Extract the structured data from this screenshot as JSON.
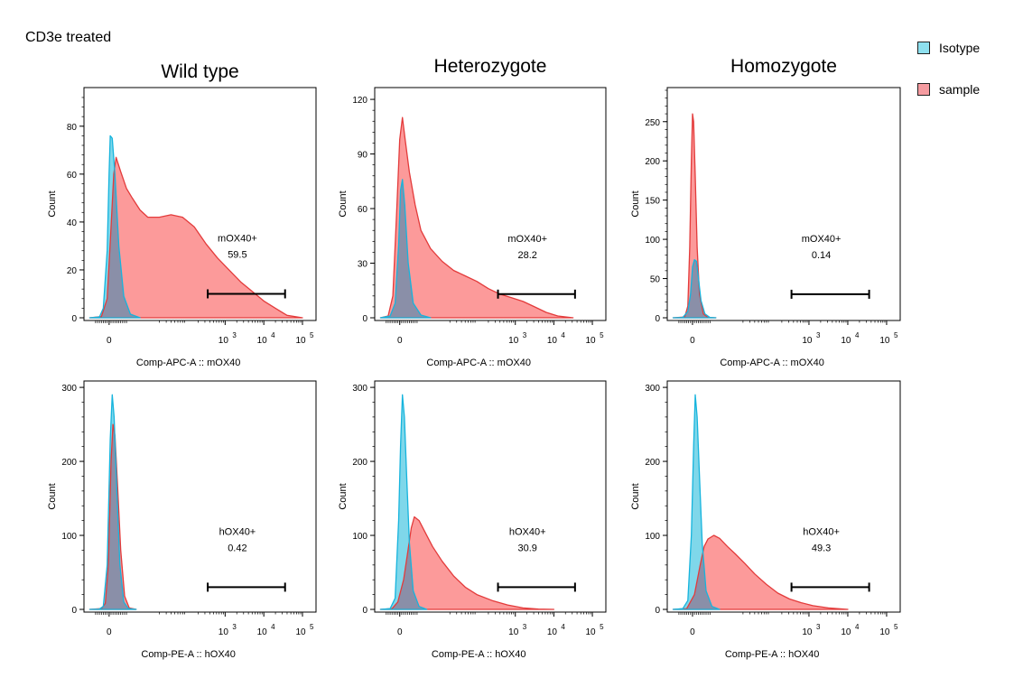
{
  "figure_title": "CD3e treated",
  "colors": {
    "isotype_fill": "#7fd7ea",
    "isotype_line": "#16b4dd",
    "sample_fill": "#fc9a9a",
    "sample_line": "#e33b3b",
    "overlap_fill": "#8a8fa8"
  },
  "legend": [
    {
      "label": "Isotype",
      "color": "#8ee0ef"
    },
    {
      "label": "sample",
      "color": "#f59ba0"
    }
  ],
  "chart_data": [
    {
      "type": "area",
      "title": "Wild type",
      "xlabel": "Comp-APC-A :: mOX40",
      "ylabel": "Count",
      "ylim": [
        0,
        95
      ],
      "yticks": [
        0,
        20,
        40,
        60,
        80
      ],
      "xticks": [
        {
          "value": 0,
          "label": "0",
          "exp": ""
        },
        {
          "value": 3,
          "label": "10",
          "exp": "3"
        },
        {
          "value": 4,
          "label": "10",
          "exp": "4"
        },
        {
          "value": 5,
          "label": "10",
          "exp": "5"
        }
      ],
      "gate": {
        "name": "mOX40+",
        "value": "59.5",
        "x_range": [
          2.55,
          4.55
        ],
        "y": 10
      },
      "series": [
        {
          "name": "Isotype",
          "points": [
            [
              -0.5,
              0
            ],
            [
              -0.25,
              0.3
            ],
            [
              -0.15,
              4
            ],
            [
              -0.05,
              28
            ],
            [
              0,
              60
            ],
            [
              0.03,
              76
            ],
            [
              0.08,
              75
            ],
            [
              0.15,
              60
            ],
            [
              0.25,
              30
            ],
            [
              0.38,
              9
            ],
            [
              0.55,
              1.5
            ],
            [
              0.8,
              0
            ]
          ]
        },
        {
          "name": "sample",
          "points": [
            [
              -0.5,
              0
            ],
            [
              -0.2,
              0.5
            ],
            [
              -0.05,
              8
            ],
            [
              0.05,
              38
            ],
            [
              0.12,
              60
            ],
            [
              0.18,
              67
            ],
            [
              0.3,
              61
            ],
            [
              0.45,
              54
            ],
            [
              0.6,
              50
            ],
            [
              0.8,
              45
            ],
            [
              1.0,
              42
            ],
            [
              1.3,
              42
            ],
            [
              1.6,
              43
            ],
            [
              1.9,
              42
            ],
            [
              2.2,
              38
            ],
            [
              2.5,
              31
            ],
            [
              2.8,
              25
            ],
            [
              3.1,
              20
            ],
            [
              3.4,
              15
            ],
            [
              3.7,
              11
            ],
            [
              4.0,
              7
            ],
            [
              4.3,
              4
            ],
            [
              4.6,
              1
            ],
            [
              5.0,
              0
            ]
          ]
        }
      ]
    },
    {
      "type": "area",
      "title": "Heterozygote",
      "xlabel": "Comp-APC-A :: mOX40",
      "ylabel": "Count",
      "ylim": [
        0,
        125
      ],
      "yticks": [
        0,
        30,
        60,
        90,
        120
      ],
      "xticks": [
        {
          "value": 0,
          "label": "0",
          "exp": ""
        },
        {
          "value": 3,
          "label": "10",
          "exp": "3"
        },
        {
          "value": 4,
          "label": "10",
          "exp": "4"
        },
        {
          "value": 5,
          "label": "10",
          "exp": "5"
        }
      ],
      "gate": {
        "name": "mOX40+",
        "value": "28.2",
        "x_range": [
          2.55,
          4.55
        ],
        "y": 13
      },
      "series": [
        {
          "name": "Isotype",
          "points": [
            [
              -0.5,
              0
            ],
            [
              -0.25,
              1
            ],
            [
              -0.12,
              8
            ],
            [
              -0.03,
              40
            ],
            [
              0.02,
              70
            ],
            [
              0.07,
              76
            ],
            [
              0.13,
              62
            ],
            [
              0.22,
              30
            ],
            [
              0.35,
              8
            ],
            [
              0.55,
              1.5
            ],
            [
              0.8,
              0
            ]
          ]
        },
        {
          "name": "sample",
          "points": [
            [
              -0.5,
              0
            ],
            [
              -0.3,
              1
            ],
            [
              -0.18,
              12
            ],
            [
              -0.08,
              58
            ],
            [
              0,
              98
            ],
            [
              0.07,
              110
            ],
            [
              0.14,
              98
            ],
            [
              0.25,
              80
            ],
            [
              0.4,
              62
            ],
            [
              0.55,
              48
            ],
            [
              0.8,
              38
            ],
            [
              1.1,
              31
            ],
            [
              1.4,
              26
            ],
            [
              1.7,
              23
            ],
            [
              2.0,
              20
            ],
            [
              2.3,
              16
            ],
            [
              2.6,
              13
            ],
            [
              2.9,
              11
            ],
            [
              3.2,
              9
            ],
            [
              3.5,
              6
            ],
            [
              3.8,
              3
            ],
            [
              4.1,
              1
            ],
            [
              4.5,
              0
            ]
          ]
        }
      ]
    },
    {
      "type": "area",
      "title": "Homozygote",
      "xlabel": "Comp-APC-A :: mOX40",
      "ylabel": "Count",
      "ylim": [
        0,
        290
      ],
      "yticks": [
        0,
        50,
        100,
        150,
        200,
        250
      ],
      "xticks": [
        {
          "value": 0,
          "label": "0",
          "exp": ""
        },
        {
          "value": 3,
          "label": "10",
          "exp": "3"
        },
        {
          "value": 4,
          "label": "10",
          "exp": "4"
        },
        {
          "value": 5,
          "label": "10",
          "exp": "5"
        }
      ],
      "gate": {
        "name": "mOX40+",
        "value": "0.14",
        "x_range": [
          2.55,
          4.55
        ],
        "y": 30
      },
      "series": [
        {
          "name": "Isotype",
          "points": [
            [
              -0.5,
              0
            ],
            [
              -0.25,
              0.5
            ],
            [
              -0.12,
              8
            ],
            [
              -0.05,
              30
            ],
            [
              0,
              65
            ],
            [
              0.05,
              74
            ],
            [
              0.1,
              72
            ],
            [
              0.15,
              52
            ],
            [
              0.22,
              22
            ],
            [
              0.32,
              5
            ],
            [
              0.45,
              0.5
            ],
            [
              0.6,
              0
            ]
          ]
        },
        {
          "name": "sample",
          "points": [
            [
              -0.5,
              0
            ],
            [
              -0.2,
              1
            ],
            [
              -0.12,
              15
            ],
            [
              -0.07,
              90
            ],
            [
              -0.03,
              200
            ],
            [
              0,
              260
            ],
            [
              0.03,
              250
            ],
            [
              0.07,
              180
            ],
            [
              0.12,
              90
            ],
            [
              0.18,
              30
            ],
            [
              0.28,
              5
            ],
            [
              0.4,
              0.5
            ],
            [
              0.6,
              0
            ]
          ]
        }
      ]
    },
    {
      "type": "area",
      "title": "",
      "xlabel": "Comp-PE-A :: hOX40",
      "ylabel": "Count",
      "ylim": [
        0,
        305
      ],
      "yticks": [
        0,
        100,
        200,
        300
      ],
      "xticks": [
        {
          "value": 0,
          "label": "0",
          "exp": ""
        },
        {
          "value": 3,
          "label": "10",
          "exp": "3"
        },
        {
          "value": 4,
          "label": "10",
          "exp": "4"
        },
        {
          "value": 5,
          "label": "10",
          "exp": "5"
        }
      ],
      "gate": {
        "name": "hOX40+",
        "value": "0.42",
        "x_range": [
          2.55,
          4.55
        ],
        "y": 30
      },
      "series": [
        {
          "name": "Isotype",
          "points": [
            [
              -0.5,
              0
            ],
            [
              -0.25,
              0.5
            ],
            [
              -0.15,
              4
            ],
            [
              -0.05,
              60
            ],
            [
              0.03,
              230
            ],
            [
              0.08,
              290
            ],
            [
              0.13,
              260
            ],
            [
              0.2,
              160
            ],
            [
              0.28,
              60
            ],
            [
              0.38,
              10
            ],
            [
              0.5,
              1
            ],
            [
              0.7,
              0
            ]
          ]
        },
        {
          "name": "sample",
          "points": [
            [
              -0.5,
              0
            ],
            [
              -0.2,
              1
            ],
            [
              -0.1,
              8
            ],
            [
              -0.02,
              60
            ],
            [
              0.05,
              200
            ],
            [
              0.1,
              250
            ],
            [
              0.15,
              235
            ],
            [
              0.22,
              165
            ],
            [
              0.3,
              80
            ],
            [
              0.4,
              18
            ],
            [
              0.52,
              2
            ],
            [
              0.7,
              0
            ]
          ]
        }
      ]
    },
    {
      "type": "area",
      "title": "",
      "xlabel": "Comp-PE-A :: hOX40",
      "ylabel": "Count",
      "ylim": [
        0,
        305
      ],
      "yticks": [
        0,
        100,
        200,
        300
      ],
      "xticks": [
        {
          "value": 0,
          "label": "0",
          "exp": ""
        },
        {
          "value": 3,
          "label": "10",
          "exp": "3"
        },
        {
          "value": 4,
          "label": "10",
          "exp": "4"
        },
        {
          "value": 5,
          "label": "10",
          "exp": "5"
        }
      ],
      "gate": {
        "name": "hOX40+",
        "value": "30.9",
        "x_range": [
          2.55,
          4.55
        ],
        "y": 30
      },
      "series": [
        {
          "name": "Isotype",
          "points": [
            [
              -0.5,
              0
            ],
            [
              -0.25,
              1
            ],
            [
              -0.12,
              15
            ],
            [
              -0.03,
              120
            ],
            [
              0.02,
              220
            ],
            [
              0.07,
              290
            ],
            [
              0.12,
              260
            ],
            [
              0.18,
              180
            ],
            [
              0.25,
              90
            ],
            [
              0.35,
              25
            ],
            [
              0.5,
              4
            ],
            [
              0.7,
              0
            ]
          ]
        },
        {
          "name": "sample",
          "points": [
            [
              -0.5,
              0
            ],
            [
              -0.2,
              1
            ],
            [
              -0.05,
              10
            ],
            [
              0.1,
              40
            ],
            [
              0.2,
              75
            ],
            [
              0.3,
              110
            ],
            [
              0.38,
              125
            ],
            [
              0.5,
              120
            ],
            [
              0.65,
              105
            ],
            [
              0.85,
              85
            ],
            [
              1.1,
              65
            ],
            [
              1.4,
              45
            ],
            [
              1.7,
              30
            ],
            [
              2.0,
              20
            ],
            [
              2.4,
              12
            ],
            [
              2.8,
              6
            ],
            [
              3.2,
              2
            ],
            [
              3.6,
              0.5
            ],
            [
              4.0,
              0
            ]
          ]
        }
      ]
    },
    {
      "type": "area",
      "title": "",
      "xlabel": "Comp-PE-A :: hOX40",
      "ylabel": "Count",
      "ylim": [
        0,
        305
      ],
      "yticks": [
        0,
        100,
        200,
        300
      ],
      "xticks": [
        {
          "value": 0,
          "label": "0",
          "exp": ""
        },
        {
          "value": 3,
          "label": "10",
          "exp": "3"
        },
        {
          "value": 4,
          "label": "10",
          "exp": "4"
        },
        {
          "value": 5,
          "label": "10",
          "exp": "5"
        }
      ],
      "gate": {
        "name": "hOX40+",
        "value": "49.3",
        "x_range": [
          2.55,
          4.55
        ],
        "y": 30
      },
      "series": [
        {
          "name": "Isotype",
          "points": [
            [
              -0.5,
              0
            ],
            [
              -0.25,
              1
            ],
            [
              -0.12,
              12
            ],
            [
              -0.03,
              100
            ],
            [
              0.03,
              220
            ],
            [
              0.07,
              290
            ],
            [
              0.12,
              260
            ],
            [
              0.18,
              180
            ],
            [
              0.25,
              90
            ],
            [
              0.35,
              25
            ],
            [
              0.5,
              4
            ],
            [
              0.7,
              0
            ]
          ]
        },
        {
          "name": "sample",
          "points": [
            [
              -0.5,
              0
            ],
            [
              -0.15,
              1
            ],
            [
              0.05,
              20
            ],
            [
              0.2,
              60
            ],
            [
              0.3,
              85
            ],
            [
              0.4,
              95
            ],
            [
              0.55,
              100
            ],
            [
              0.7,
              96
            ],
            [
              0.9,
              85
            ],
            [
              1.1,
              75
            ],
            [
              1.35,
              62
            ],
            [
              1.6,
              48
            ],
            [
              1.9,
              34
            ],
            [
              2.2,
              22
            ],
            [
              2.5,
              14
            ],
            [
              2.8,
              9
            ],
            [
              3.1,
              5
            ],
            [
              3.5,
              2
            ],
            [
              4.0,
              0
            ]
          ]
        }
      ]
    }
  ]
}
